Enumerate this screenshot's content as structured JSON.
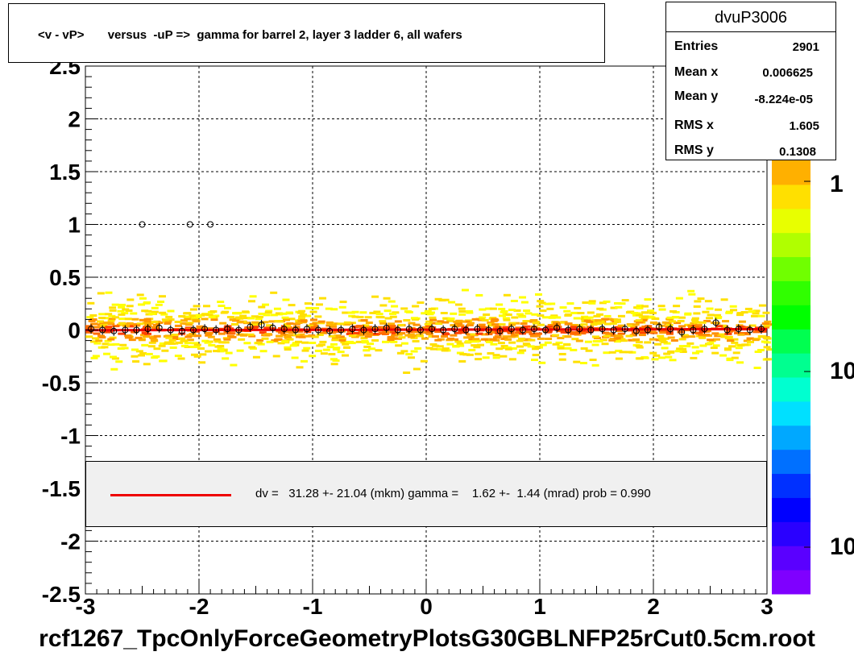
{
  "title": "<v - vP>       versus  -uP =>  gamma for barrel 2, layer 3 ladder 6, all wafers",
  "stats": {
    "name": "dvuP3006",
    "rows": [
      {
        "label": "Entries",
        "value": "2901"
      },
      {
        "label": "Mean x",
        "value": "0.006625"
      },
      {
        "label": "Mean y",
        "value": "-8.224e-05"
      },
      {
        "label": "RMS x",
        "value": "1.605"
      },
      {
        "label": "RMS y",
        "value": "0.1308"
      }
    ]
  },
  "fit_legend": {
    "text": "dv =   31.28 +- 21.04 (mkm) gamma =    1.62 +-  1.44 (mrad) prob = 0.990",
    "line_color": "#ee0000"
  },
  "bottom_label": "rcf1267_TpcOnlyForceGeometryPlotsG30GBLNFP25rCut0.5cm.root",
  "palette_labels": [
    "1",
    "10",
    "10"
  ],
  "colors": {
    "palette": [
      "#7f00ff",
      "#5a00ff",
      "#2a00ff",
      "#0000ff",
      "#0030ff",
      "#0070ff",
      "#00a8ff",
      "#00e0ff",
      "#00ffd0",
      "#00ff90",
      "#00ff50",
      "#00ff00",
      "#30ff00",
      "#70ff00",
      "#b0ff00",
      "#e8ff00",
      "#ffe000",
      "#ffb000"
    ],
    "fit": "#ee0000"
  },
  "chart_data": {
    "type": "scatter",
    "title": "<v - vP>       versus  -uP =>  gamma for barrel 2, layer 3 ladder 6, all wafers",
    "xlim": [
      -3,
      3
    ],
    "ylim": [
      -2.5,
      2.5
    ],
    "x_ticks": [
      "-3",
      "-2",
      "-1",
      "0",
      "1",
      "2",
      "3"
    ],
    "y_ticks": [
      "-2.5",
      "-2",
      "-1.5",
      "-1",
      "-0.5",
      "0",
      "0.5",
      "1",
      "1.5",
      "2",
      "2.5"
    ],
    "grid": true,
    "outlier_points": [
      {
        "x": -2.5,
        "y": 1.0
      },
      {
        "x": -2.08,
        "y": 1.0
      },
      {
        "x": -1.9,
        "y": 1.0
      }
    ],
    "profile_points": [
      {
        "x": -2.95,
        "y": 0.01
      },
      {
        "x": -2.85,
        "y": 0.0
      },
      {
        "x": -2.75,
        "y": -0.01
      },
      {
        "x": -2.65,
        "y": 0.0
      },
      {
        "x": -2.55,
        "y": 0.0
      },
      {
        "x": -2.45,
        "y": 0.01
      },
      {
        "x": -2.35,
        "y": 0.02
      },
      {
        "x": -2.25,
        "y": 0.0
      },
      {
        "x": -2.15,
        "y": -0.01
      },
      {
        "x": -2.05,
        "y": 0.0
      },
      {
        "x": -1.95,
        "y": 0.01
      },
      {
        "x": -1.85,
        "y": 0.0
      },
      {
        "x": -1.75,
        "y": 0.01
      },
      {
        "x": -1.65,
        "y": 0.0
      },
      {
        "x": -1.55,
        "y": 0.03
      },
      {
        "x": -1.45,
        "y": 0.05
      },
      {
        "x": -1.35,
        "y": 0.02
      },
      {
        "x": -1.25,
        "y": 0.01
      },
      {
        "x": -1.15,
        "y": 0.0
      },
      {
        "x": -1.05,
        "y": 0.01
      },
      {
        "x": -0.95,
        "y": 0.0
      },
      {
        "x": -0.85,
        "y": -0.01
      },
      {
        "x": -0.75,
        "y": 0.0
      },
      {
        "x": -0.65,
        "y": 0.01
      },
      {
        "x": -0.55,
        "y": 0.0
      },
      {
        "x": -0.45,
        "y": 0.01
      },
      {
        "x": -0.35,
        "y": 0.02
      },
      {
        "x": -0.25,
        "y": 0.0
      },
      {
        "x": -0.15,
        "y": 0.01
      },
      {
        "x": -0.05,
        "y": 0.0
      },
      {
        "x": 0.05,
        "y": 0.01
      },
      {
        "x": 0.15,
        "y": 0.0
      },
      {
        "x": 0.25,
        "y": 0.01
      },
      {
        "x": 0.35,
        "y": 0.0
      },
      {
        "x": 0.45,
        "y": 0.01
      },
      {
        "x": 0.55,
        "y": 0.0
      },
      {
        "x": 0.65,
        "y": -0.01
      },
      {
        "x": 0.75,
        "y": 0.01
      },
      {
        "x": 0.85,
        "y": 0.0
      },
      {
        "x": 0.95,
        "y": 0.01
      },
      {
        "x": 1.05,
        "y": 0.0
      },
      {
        "x": 1.15,
        "y": 0.02
      },
      {
        "x": 1.25,
        "y": 0.0
      },
      {
        "x": 1.35,
        "y": 0.01
      },
      {
        "x": 1.45,
        "y": 0.0
      },
      {
        "x": 1.55,
        "y": 0.01
      },
      {
        "x": 1.65,
        "y": 0.0
      },
      {
        "x": 1.75,
        "y": 0.01
      },
      {
        "x": 1.85,
        "y": -0.01
      },
      {
        "x": 1.95,
        "y": 0.0
      },
      {
        "x": 2.05,
        "y": 0.03
      },
      {
        "x": 2.15,
        "y": 0.01
      },
      {
        "x": 2.25,
        "y": -0.02
      },
      {
        "x": 2.35,
        "y": 0.0
      },
      {
        "x": 2.45,
        "y": 0.01
      },
      {
        "x": 2.55,
        "y": 0.07
      },
      {
        "x": 2.65,
        "y": 0.0
      },
      {
        "x": 2.75,
        "y": 0.01
      },
      {
        "x": 2.85,
        "y": 0.0
      },
      {
        "x": 2.95,
        "y": 0.01
      }
    ],
    "fit_line": {
      "dv_mkm": 31.28,
      "dv_err_mkm": 21.04,
      "gamma_mrad": 1.62,
      "gamma_err_mrad": 1.44,
      "prob": 0.99
    },
    "density_band": {
      "y_center": 0.0,
      "y_spread": 0.13
    }
  }
}
